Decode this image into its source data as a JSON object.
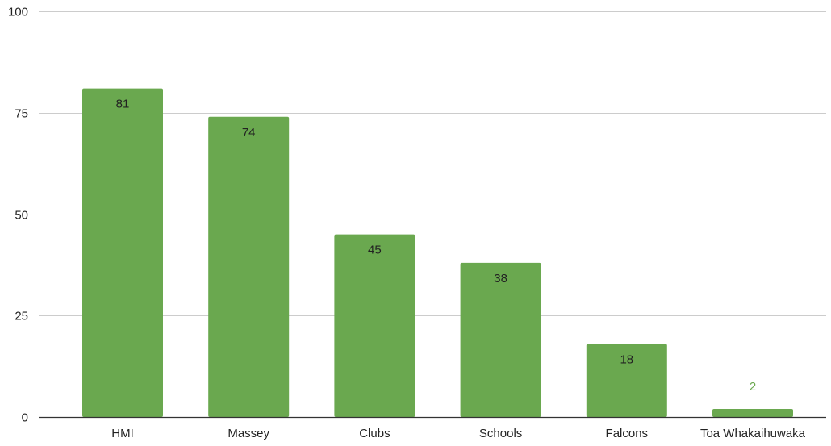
{
  "chart_data": {
    "type": "bar",
    "title": "",
    "xlabel": "",
    "ylabel": "",
    "categories": [
      "HMI",
      "Massey",
      "Clubs",
      "Schools",
      "Falcons",
      "Toa Whakaihuwaka"
    ],
    "values": [
      81,
      74,
      45,
      38,
      18,
      2
    ],
    "data_labels": [
      "81",
      "74",
      "45",
      "38",
      "18",
      "2"
    ],
    "ylim": [
      0,
      100
    ],
    "yticks": [
      0,
      25,
      50,
      75,
      100
    ],
    "ytick_labels": [
      "0",
      "25",
      "50",
      "75",
      "100"
    ],
    "grid": true,
    "legend": "none",
    "colors": {
      "bar": "#6aa84f",
      "inside_label": "#222222",
      "outside_label": "#6aa84f",
      "gridline": "#cccccc",
      "axis": "#333333"
    }
  }
}
